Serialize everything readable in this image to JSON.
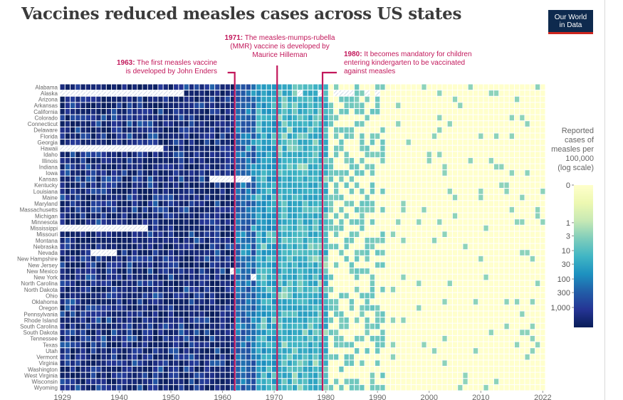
{
  "title": "Vaccines reduced measles cases across US states",
  "logo": {
    "line1": "Our World",
    "line2": "in Data"
  },
  "annotations": [
    {
      "year_label": "1963:",
      "text_lines": [
        "The first measles vaccine",
        "is developed by John Enders"
      ]
    },
    {
      "year_label": "1971:",
      "text_lines": [
        "The measles-mumps-rubella",
        "(MMR) vaccine is developed by",
        "Maurice Hilleman"
      ]
    },
    {
      "year_label": "1980:",
      "text_lines": [
        "It becomes mandatory for children",
        "entering kindergarten to be vaccinated",
        "against measles"
      ]
    }
  ],
  "legend": {
    "title_lines": [
      "Reported",
      "cases of",
      "measles per",
      "100,000",
      "(log scale)"
    ],
    "ticks": [
      {
        "value": 0,
        "label": "0"
      },
      {
        "value": 1,
        "label": "1"
      },
      {
        "value": 3,
        "label": "3"
      },
      {
        "value": 10,
        "label": "10"
      },
      {
        "value": 30,
        "label": "30"
      },
      {
        "value": 100,
        "label": "100"
      },
      {
        "value": 300,
        "label": "300"
      },
      {
        "value": 1000,
        "label": "1,000"
      }
    ]
  },
  "colors": {
    "annotation": "#c2185b",
    "nodata_hatch": "#c9d3e3",
    "scale": [
      "#ffffcc",
      "#edf8b1",
      "#c7e9b4",
      "#7fcdbb",
      "#41b6c4",
      "#1d91c0",
      "#225ea8",
      "#253494",
      "#081d58"
    ]
  },
  "chart_data": {
    "type": "heatmap",
    "title": "Vaccines reduced measles cases across US states",
    "x_range": [
      1929,
      2022
    ],
    "x_ticks": [
      {
        "value": 1929,
        "label": "1929"
      },
      {
        "value": 1940,
        "label": "1940"
      },
      {
        "value": 1950,
        "label": "1950"
      },
      {
        "value": 1960,
        "label": "1960"
      },
      {
        "value": 1970,
        "label": "1970"
      },
      {
        "value": 1980,
        "label": "1980"
      },
      {
        "value": 1990,
        "label": "1990"
      },
      {
        "value": 2000,
        "label": "2000"
      },
      {
        "value": 2010,
        "label": "2010"
      },
      {
        "value": 2022,
        "label": "2022"
      }
    ],
    "color_scale": "log",
    "unit": "Reported cases of measles per 100,000",
    "event_years": [
      1963,
      1971,
      1980
    ],
    "states": [
      "Alabama",
      "Alaska",
      "Arizona",
      "Arkansas",
      "California",
      "Colorado",
      "Connecticut",
      "Delaware",
      "Florida",
      "Georgia",
      "Hawaii",
      "Idaho",
      "Illinois",
      "Indiana",
      "Iowa",
      "Kansas",
      "Kentucky",
      "Louisiana",
      "Maine",
      "Maryland",
      "Massachusetts",
      "Michigan",
      "Minnesota",
      "Mississippi",
      "Missouri",
      "Montana",
      "Nebraska",
      "Nevada",
      "New Hampshire",
      "New Jersey",
      "New Mexico",
      "New York",
      "North Carolina",
      "North Dakota",
      "Ohio",
      "Oklahoma",
      "Oregon",
      "Pennsylvania",
      "Rhode Island",
      "South Carolina",
      "South Dakota",
      "Tennessee",
      "Texas",
      "Utah",
      "Vermont",
      "Virginia",
      "Washington",
      "West Virginia",
      "Wisconsin",
      "Wyoming"
    ],
    "typical_rate_by_period": [
      {
        "years": [
          1929,
          1962
        ],
        "rate": 300
      },
      {
        "years": [
          1963,
          1966
        ],
        "rate": 60
      },
      {
        "years": [
          1967,
          1970
        ],
        "rate": 12
      },
      {
        "years": [
          1971,
          1980
        ],
        "rate": 6
      },
      {
        "years": [
          1981,
          1991
        ],
        "rate": 1.5
      },
      {
        "years": [
          1992,
          2022
        ],
        "rate": 0.05
      }
    ],
    "no_data": [
      {
        "state": "Alaska",
        "years": [
          1929,
          1952
        ]
      },
      {
        "state": "Alaska",
        "years": [
          1975,
          1975
        ]
      },
      {
        "state": "Alaska",
        "years": [
          1979,
          1979
        ]
      },
      {
        "state": "Alaska",
        "years": [
          1982,
          1985
        ]
      },
      {
        "state": "Alaska",
        "years": [
          1988,
          1988
        ]
      },
      {
        "state": "Alaska",
        "years": [
          1990,
          1990
        ]
      },
      {
        "state": "Hawaii",
        "years": [
          1929,
          1948
        ]
      },
      {
        "state": "Kansas",
        "years": [
          1958,
          1965
        ]
      },
      {
        "state": "Mississippi",
        "years": [
          1929,
          1945
        ]
      },
      {
        "state": "Nevada",
        "years": [
          1935,
          1939
        ]
      },
      {
        "state": "New Mexico",
        "years": [
          1962,
          1962
        ]
      },
      {
        "state": "New York",
        "years": [
          1966,
          1966
        ]
      }
    ]
  }
}
